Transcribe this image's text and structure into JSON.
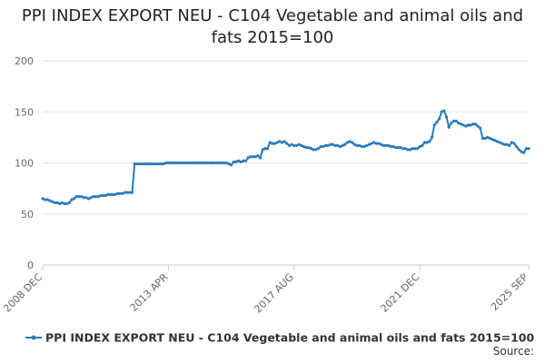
{
  "chart_data": {
    "type": "line",
    "title": "PPI INDEX EXPORT NEU - C104 Vegetable and animal oils and fats 2015=100",
    "source": "Source:",
    "categories": [
      "2008 DEC",
      null,
      null,
      null,
      null,
      null,
      null,
      null,
      null,
      null,
      null,
      null,
      null,
      null,
      null,
      null,
      null,
      null,
      null,
      null,
      null,
      null,
      null,
      null,
      null,
      null,
      null,
      null,
      null,
      null,
      null,
      null,
      null,
      null,
      null,
      null,
      null,
      null,
      null,
      null,
      null,
      null,
      null,
      null,
      null,
      null,
      null,
      null,
      null,
      null,
      null,
      null,
      "2013 APR",
      null,
      null,
      null,
      null,
      null,
      null,
      null,
      null,
      null,
      null,
      null,
      null,
      null,
      null,
      null,
      null,
      null,
      null,
      null,
      null,
      null,
      null,
      null,
      null,
      null,
      null,
      null,
      null,
      null,
      null,
      null,
      null,
      null,
      null,
      null,
      null,
      null,
      null,
      null,
      null,
      null,
      null,
      null,
      null,
      null,
      null,
      null,
      null,
      null,
      null,
      null,
      "2017 AUG",
      null,
      null,
      null,
      null,
      null,
      null,
      null,
      null,
      null,
      null,
      null,
      null,
      null,
      null,
      null,
      null,
      null,
      null,
      null,
      null,
      null,
      null,
      null,
      null,
      null,
      null,
      null,
      null,
      null,
      null,
      null,
      null,
      null,
      null,
      null,
      null,
      null,
      null,
      null,
      null,
      null,
      null,
      null,
      null,
      null,
      null,
      null,
      null,
      null,
      null,
      null,
      "2021 DEC",
      null,
      null,
      null,
      null,
      null,
      null,
      null,
      null,
      null,
      null,
      null,
      null,
      null,
      null,
      null,
      null,
      null,
      null,
      null,
      null,
      null,
      null,
      null,
      null,
      null,
      null,
      null,
      null,
      null,
      null,
      null,
      null,
      null,
      null,
      null,
      null,
      null,
      null,
      null,
      null,
      null,
      null,
      null,
      null,
      "2025 SEP"
    ],
    "series": [
      {
        "name": "PPI INDEX EXPORT NEU - C104 Vegetable and animal oils and fats 2015=100",
        "color": "#2b7bb9",
        "values": [
          65,
          64,
          64,
          63,
          62,
          61,
          61,
          60,
          61,
          60,
          60,
          61,
          64,
          65,
          67,
          67,
          67,
          66,
          66,
          65,
          66,
          67,
          67,
          67,
          68,
          68,
          68,
          69,
          69,
          69,
          69,
          70,
          70,
          70,
          71,
          71,
          71,
          71,
          99,
          99,
          99,
          99,
          99,
          99,
          99,
          99,
          99,
          99,
          99,
          99,
          99,
          100,
          100,
          100,
          100,
          100,
          100,
          100,
          100,
          100,
          100,
          100,
          100,
          100,
          100,
          100,
          100,
          100,
          100,
          100,
          100,
          100,
          100,
          100,
          100,
          100,
          100,
          99,
          98,
          101,
          101,
          102,
          101,
          102,
          102,
          105,
          106,
          106,
          106,
          107,
          105,
          113,
          114,
          114,
          120,
          119,
          119,
          120,
          121,
          120,
          121,
          119,
          117,
          118,
          117,
          117,
          118,
          117,
          116,
          115,
          115,
          114,
          113,
          113,
          114,
          116,
          116,
          117,
          117,
          118,
          118,
          117,
          117,
          116,
          117,
          118,
          120,
          121,
          120,
          118,
          117,
          117,
          116,
          116,
          117,
          118,
          119,
          120,
          119,
          119,
          118,
          117,
          117,
          117,
          116,
          116,
          115,
          115,
          115,
          114,
          114,
          113,
          113,
          114,
          114,
          114,
          116,
          117,
          120,
          120,
          121,
          125,
          137,
          140,
          143,
          150,
          151,
          145,
          135,
          139,
          141,
          141,
          139,
          138,
          137,
          136,
          137,
          137,
          138,
          138,
          136,
          134,
          124,
          124,
          125,
          124,
          123,
          122,
          121,
          120,
          119,
          118,
          118,
          117,
          120,
          119,
          116,
          113,
          111,
          110,
          114,
          114
        ]
      }
    ],
    "ylim": [
      0,
      200
    ],
    "yticks": [
      0,
      50,
      100,
      150,
      200
    ],
    "grid": true,
    "legend": "bottom"
  }
}
